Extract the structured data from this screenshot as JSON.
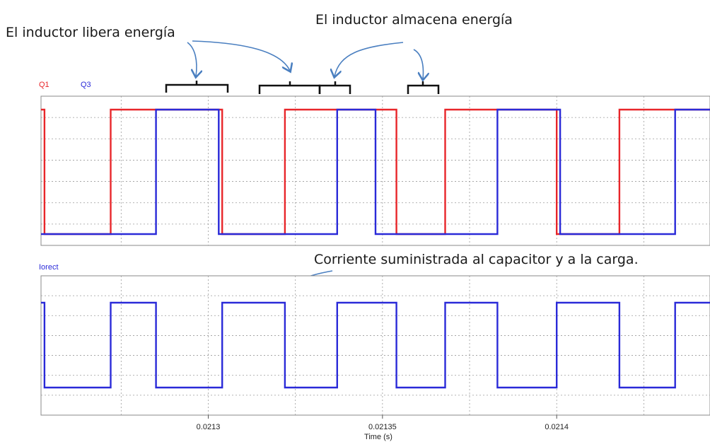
{
  "annotations": {
    "releases": "El inductor libera energía",
    "stores": "El inductor almacena energía",
    "current": "Corriente suministrada al capacitor y a la carga."
  },
  "colors": {
    "q1": "#e8262a",
    "q3": "#2a2ad8",
    "iorect": "#2a2ad8",
    "grid": "#9a9a9a",
    "bracket": "#111111",
    "arrow": "#4a7fc0"
  },
  "chart_data": [
    {
      "type": "line",
      "title": "",
      "xlabel": "",
      "ylabel": "",
      "xlim": [
        0.021252,
        0.021444
      ],
      "grid": true,
      "legend": "top-left",
      "series": [
        {
          "name": "Q1",
          "color": "#e8262a",
          "x": [
            0.021252,
            0.021253,
            0.021253,
            0.021272,
            0.021272,
            0.021304,
            0.021304,
            0.021322,
            0.021322,
            0.021354,
            0.021354,
            0.021368,
            0.021368,
            0.0214,
            0.0214,
            0.021418,
            0.021418,
            0.021444
          ],
          "y": [
            1,
            1,
            0,
            0,
            1,
            1,
            0,
            0,
            1,
            1,
            0,
            0,
            1,
            1,
            0,
            0,
            1,
            1
          ]
        },
        {
          "name": "Q3",
          "color": "#2a2ad8",
          "x": [
            0.021252,
            0.021285,
            0.021285,
            0.021303,
            0.021303,
            0.021337,
            0.021337,
            0.021348,
            0.021348,
            0.021383,
            0.021383,
            0.021401,
            0.021401,
            0.021434,
            0.021434,
            0.021444
          ],
          "y": [
            0,
            0,
            1,
            1,
            0,
            0,
            1,
            1,
            0,
            0,
            1,
            1,
            0,
            0,
            1,
            1
          ]
        }
      ]
    },
    {
      "type": "line",
      "title": "",
      "xlabel": "Time (s)",
      "ylabel": "",
      "xlim": [
        0.021252,
        0.021444
      ],
      "xticks": [
        0.0213,
        0.02135,
        0.0214
      ],
      "xtick_labels": [
        "0.0213",
        "0.02135",
        "0.0214"
      ],
      "grid": true,
      "legend": "top-left",
      "series": [
        {
          "name": "Iorect",
          "color": "#2a2ad8",
          "x": [
            0.021252,
            0.021253,
            0.021253,
            0.021272,
            0.021272,
            0.021285,
            0.021285,
            0.021304,
            0.021304,
            0.021322,
            0.021322,
            0.021337,
            0.021337,
            0.021354,
            0.021354,
            0.021368,
            0.021368,
            0.021383,
            0.021383,
            0.0214,
            0.0214,
            0.021418,
            0.021418,
            0.021434,
            0.021434,
            0.021444
          ],
          "y": [
            1,
            1,
            0,
            0,
            1,
            1,
            0,
            0,
            1,
            1,
            0,
            0,
            1,
            1,
            0,
            0,
            1,
            1,
            0,
            0,
            1,
            1,
            0,
            0,
            1,
            1
          ]
        }
      ]
    }
  ]
}
